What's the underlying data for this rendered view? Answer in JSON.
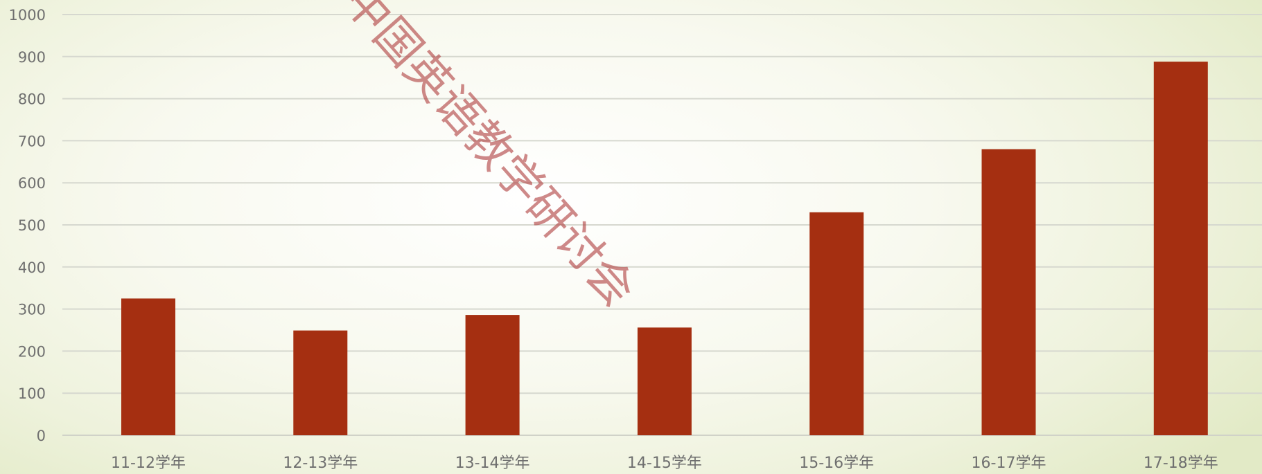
{
  "chart_data": {
    "type": "bar",
    "title": "",
    "xlabel": "",
    "ylabel": "",
    "categories": [
      "11-12学年",
      "12-13学年",
      "13-14学年",
      "14-15学年",
      "15-16学年",
      "16-17学年",
      "17-18学年"
    ],
    "values": [
      325,
      249,
      286,
      256,
      530,
      680,
      888
    ],
    "ylim": [
      0,
      1000
    ],
    "yticks": [
      "0",
      "100",
      "200",
      "300",
      "400",
      "500",
      "600",
      "700",
      "800",
      "900",
      "1000"
    ],
    "grid": true,
    "legend": "none",
    "bar_color": "#a52f11",
    "watermark": "中国英语教学研讨会"
  }
}
